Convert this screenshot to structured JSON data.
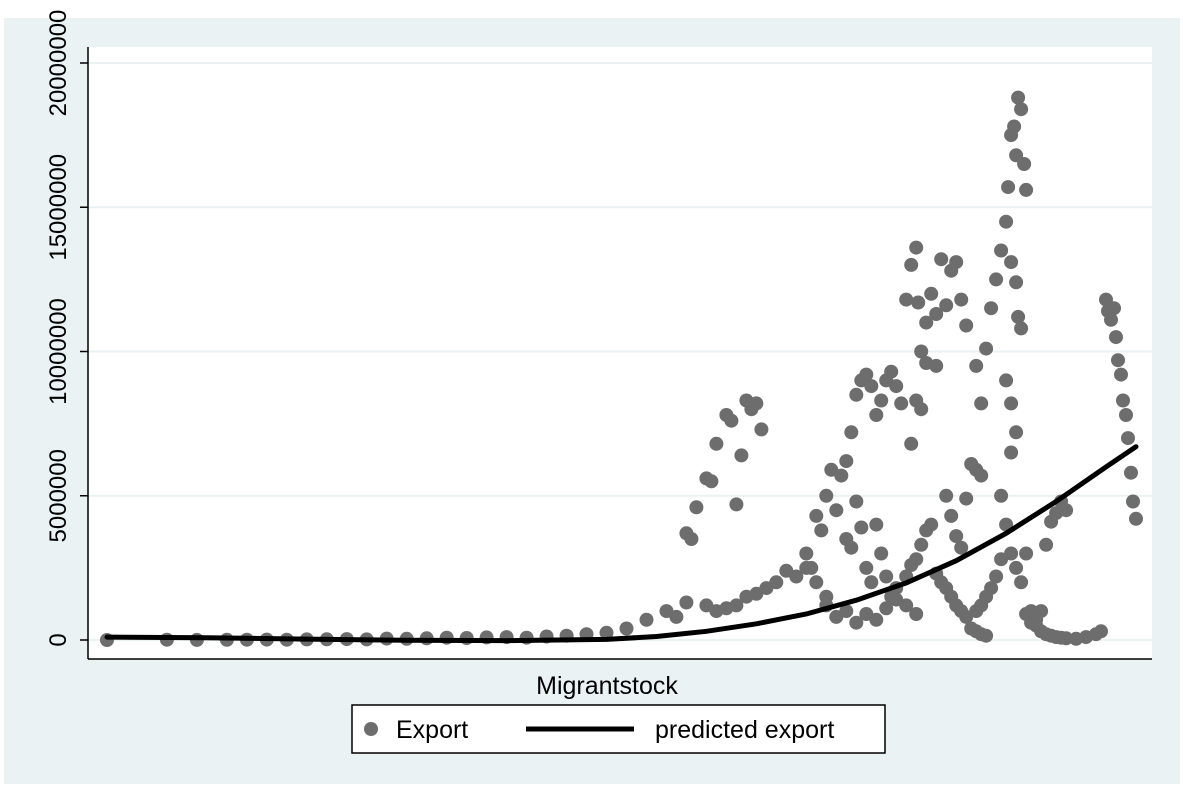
{
  "chart_data": {
    "type": "scatter",
    "title": "",
    "xlabel": "Migrantstock",
    "ylabel": "",
    "x_tick_labels": false,
    "ylim": [
      -600000,
      20500000
    ],
    "yticks": [
      0,
      5000000,
      10000000,
      15000000,
      20000000
    ],
    "ytick_labels": [
      "0",
      "5000000",
      "10000000",
      "15000000",
      "20000000"
    ],
    "grid": true,
    "legend_position": "bottom",
    "colors": {
      "background": "#eaf2f3",
      "plot": "#ffffff",
      "points": "#6d6d6d",
      "line": "#000000",
      "grid": "#eaf2f3"
    },
    "series": [
      {
        "name": "Export",
        "kind": "scatter",
        "points": [
          [
            0.0,
            0
          ],
          [
            0.06,
            10000
          ],
          [
            0.09,
            5000
          ],
          [
            0.12,
            8000
          ],
          [
            0.14,
            12000
          ],
          [
            0.16,
            15000
          ],
          [
            0.18,
            10000
          ],
          [
            0.2,
            20000
          ],
          [
            0.22,
            25000
          ],
          [
            0.24,
            30000
          ],
          [
            0.26,
            20000
          ],
          [
            0.28,
            50000
          ],
          [
            0.3,
            40000
          ],
          [
            0.32,
            60000
          ],
          [
            0.34,
            80000
          ],
          [
            0.36,
            70000
          ],
          [
            0.38,
            90000
          ],
          [
            0.4,
            100000
          ],
          [
            0.42,
            80000
          ],
          [
            0.44,
            120000
          ],
          [
            0.46,
            150000
          ],
          [
            0.48,
            200000
          ],
          [
            0.5,
            250000
          ],
          [
            0.52,
            400000
          ],
          [
            0.54,
            700000
          ],
          [
            0.56,
            1000000
          ],
          [
            0.57,
            800000
          ],
          [
            0.58,
            1300000
          ],
          [
            0.6,
            1200000
          ],
          [
            0.61,
            1000000
          ],
          [
            0.62,
            1100000
          ],
          [
            0.63,
            1200000
          ],
          [
            0.64,
            1500000
          ],
          [
            0.65,
            1600000
          ],
          [
            0.66,
            1800000
          ],
          [
            0.67,
            2000000
          ],
          [
            0.68,
            2400000
          ],
          [
            0.69,
            2200000
          ],
          [
            0.7,
            2500000
          ],
          [
            0.71,
            2000000
          ],
          [
            0.72,
            1500000
          ],
          [
            0.58,
            3700000
          ],
          [
            0.585,
            3500000
          ],
          [
            0.59,
            4600000
          ],
          [
            0.6,
            5600000
          ],
          [
            0.605,
            5500000
          ],
          [
            0.61,
            6800000
          ],
          [
            0.62,
            7800000
          ],
          [
            0.625,
            7600000
          ],
          [
            0.63,
            4700000
          ],
          [
            0.635,
            6400000
          ],
          [
            0.64,
            8300000
          ],
          [
            0.645,
            8000000
          ],
          [
            0.65,
            8200000
          ],
          [
            0.655,
            7300000
          ],
          [
            0.7,
            3000000
          ],
          [
            0.705,
            2500000
          ],
          [
            0.71,
            4300000
          ],
          [
            0.715,
            3800000
          ],
          [
            0.72,
            5000000
          ],
          [
            0.725,
            5900000
          ],
          [
            0.73,
            4500000
          ],
          [
            0.735,
            5700000
          ],
          [
            0.74,
            6200000
          ],
          [
            0.745,
            7200000
          ],
          [
            0.75,
            8500000
          ],
          [
            0.755,
            9000000
          ],
          [
            0.76,
            9200000
          ],
          [
            0.765,
            8800000
          ],
          [
            0.77,
            7800000
          ],
          [
            0.775,
            8300000
          ],
          [
            0.78,
            9000000
          ],
          [
            0.74,
            3500000
          ],
          [
            0.745,
            3200000
          ],
          [
            0.75,
            4800000
          ],
          [
            0.755,
            3900000
          ],
          [
            0.76,
            2500000
          ],
          [
            0.765,
            2000000
          ],
          [
            0.77,
            4000000
          ],
          [
            0.775,
            3000000
          ],
          [
            0.78,
            2200000
          ],
          [
            0.785,
            1500000
          ],
          [
            0.72,
            1200000
          ],
          [
            0.73,
            800000
          ],
          [
            0.74,
            1000000
          ],
          [
            0.75,
            600000
          ],
          [
            0.76,
            900000
          ],
          [
            0.77,
            700000
          ],
          [
            0.78,
            1100000
          ],
          [
            0.79,
            1400000
          ],
          [
            0.8,
            2200000
          ],
          [
            0.805,
            2600000
          ],
          [
            0.81,
            2800000
          ],
          [
            0.815,
            3300000
          ],
          [
            0.82,
            3800000
          ],
          [
            0.825,
            4000000
          ],
          [
            0.79,
            1800000
          ],
          [
            0.8,
            1200000
          ],
          [
            0.81,
            900000
          ],
          [
            0.785,
            9300000
          ],
          [
            0.79,
            8800000
          ],
          [
            0.795,
            8200000
          ],
          [
            0.8,
            11800000
          ],
          [
            0.805,
            13000000
          ],
          [
            0.81,
            13600000
          ],
          [
            0.812,
            11700000
          ],
          [
            0.815,
            10000000
          ],
          [
            0.82,
            11000000
          ],
          [
            0.825,
            12000000
          ],
          [
            0.83,
            11300000
          ],
          [
            0.835,
            13200000
          ],
          [
            0.84,
            11600000
          ],
          [
            0.845,
            12800000
          ],
          [
            0.85,
            13100000
          ],
          [
            0.855,
            11800000
          ],
          [
            0.86,
            10900000
          ],
          [
            0.805,
            6800000
          ],
          [
            0.81,
            8300000
          ],
          [
            0.815,
            8000000
          ],
          [
            0.82,
            9600000
          ],
          [
            0.83,
            9500000
          ],
          [
            0.84,
            5000000
          ],
          [
            0.845,
            4300000
          ],
          [
            0.85,
            3600000
          ],
          [
            0.855,
            3200000
          ],
          [
            0.86,
            4900000
          ],
          [
            0.865,
            6100000
          ],
          [
            0.87,
            5900000
          ],
          [
            0.875,
            5700000
          ],
          [
            0.83,
            2300000
          ],
          [
            0.835,
            2000000
          ],
          [
            0.84,
            1800000
          ],
          [
            0.845,
            1500000
          ],
          [
            0.85,
            1200000
          ],
          [
            0.855,
            1000000
          ],
          [
            0.86,
            800000
          ],
          [
            0.865,
            400000
          ],
          [
            0.87,
            300000
          ],
          [
            0.875,
            200000
          ],
          [
            0.88,
            150000
          ],
          [
            0.87,
            1000000
          ],
          [
            0.875,
            1200000
          ],
          [
            0.88,
            1500000
          ],
          [
            0.885,
            1800000
          ],
          [
            0.89,
            2200000
          ],
          [
            0.895,
            2800000
          ],
          [
            0.87,
            9500000
          ],
          [
            0.875,
            8200000
          ],
          [
            0.88,
            10100000
          ],
          [
            0.885,
            11500000
          ],
          [
            0.89,
            12500000
          ],
          [
            0.895,
            13500000
          ],
          [
            0.9,
            14500000
          ],
          [
            0.902,
            15700000
          ],
          [
            0.905,
            17500000
          ],
          [
            0.908,
            17800000
          ],
          [
            0.91,
            16800000
          ],
          [
            0.912,
            18800000
          ],
          [
            0.915,
            18400000
          ],
          [
            0.918,
            16500000
          ],
          [
            0.92,
            15600000
          ],
          [
            0.905,
            13100000
          ],
          [
            0.91,
            12400000
          ],
          [
            0.912,
            11200000
          ],
          [
            0.915,
            10800000
          ],
          [
            0.9,
            9000000
          ],
          [
            0.905,
            8200000
          ],
          [
            0.91,
            7200000
          ],
          [
            0.905,
            6500000
          ],
          [
            0.895,
            5000000
          ],
          [
            0.9,
            4000000
          ],
          [
            0.905,
            3000000
          ],
          [
            0.91,
            2500000
          ],
          [
            0.915,
            2000000
          ],
          [
            0.92,
            3000000
          ],
          [
            0.925,
            1000000
          ],
          [
            0.93,
            500000
          ],
          [
            0.935,
            300000
          ],
          [
            0.94,
            200000
          ],
          [
            0.945,
            150000
          ],
          [
            0.95,
            100000
          ],
          [
            0.955,
            80000
          ],
          [
            0.96,
            60000
          ],
          [
            0.97,
            40000
          ],
          [
            0.98,
            100000
          ],
          [
            0.99,
            200000
          ],
          [
            0.995,
            300000
          ],
          [
            0.92,
            900000
          ],
          [
            0.925,
            600000
          ],
          [
            0.93,
            700000
          ],
          [
            0.935,
            1000000
          ],
          [
            0.94,
            3300000
          ],
          [
            0.945,
            4100000
          ],
          [
            0.95,
            4400000
          ],
          [
            0.955,
            4800000
          ],
          [
            0.96,
            4500000
          ],
          [
            1.0,
            11800000
          ],
          [
            1.002,
            11400000
          ],
          [
            1.005,
            11100000
          ],
          [
            1.008,
            11500000
          ],
          [
            1.01,
            10500000
          ],
          [
            1.012,
            9700000
          ],
          [
            1.015,
            9200000
          ],
          [
            1.017,
            8300000
          ],
          [
            1.02,
            7800000
          ],
          [
            1.022,
            7000000
          ],
          [
            1.025,
            5800000
          ],
          [
            1.027,
            4800000
          ],
          [
            1.03,
            4200000
          ]
        ]
      },
      {
        "name": "predicted export",
        "kind": "line",
        "points": [
          [
            0.0,
            100000
          ],
          [
            0.1,
            80000
          ],
          [
            0.2,
            30000
          ],
          [
            0.3,
            -10000
          ],
          [
            0.4,
            -20000
          ],
          [
            0.5,
            20000
          ],
          [
            0.55,
            120000
          ],
          [
            0.6,
            300000
          ],
          [
            0.65,
            560000
          ],
          [
            0.7,
            900000
          ],
          [
            0.75,
            1380000
          ],
          [
            0.8,
            1980000
          ],
          [
            0.85,
            2750000
          ],
          [
            0.9,
            3700000
          ],
          [
            0.95,
            4800000
          ],
          [
            1.0,
            6000000
          ],
          [
            1.03,
            6700000
          ]
        ]
      }
    ]
  }
}
